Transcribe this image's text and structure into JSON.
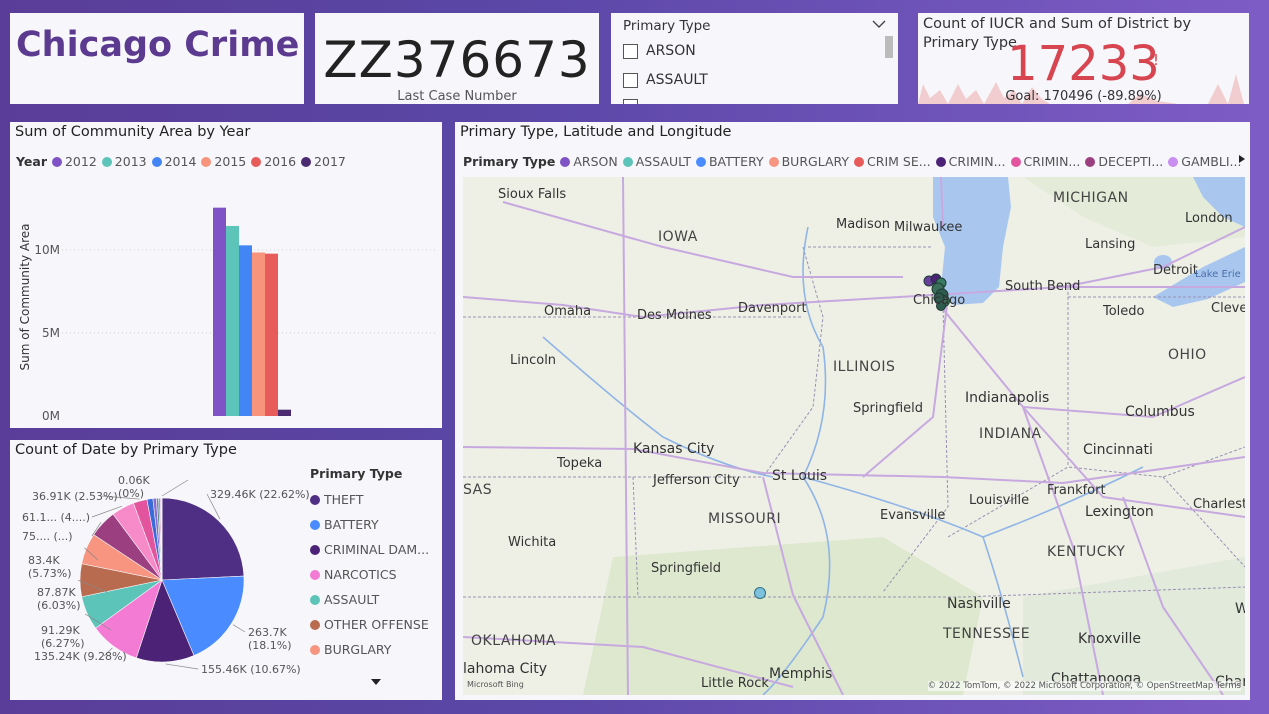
{
  "title": {
    "text": "Chicago Crime"
  },
  "case_card": {
    "value": "ZZ376673",
    "label": "Last Case Number"
  },
  "slicer": {
    "header": "Primary Type",
    "items": [
      "ARSON",
      "ASSAULT"
    ]
  },
  "kpi": {
    "title": "Count of IUCR and Sum of District by Primary Type",
    "value": "17233",
    "indicator": "!",
    "goal": "Goal: 170496 (-89.89%)",
    "colors": {
      "value": "#d64550",
      "trend": "#f2cdd0"
    }
  },
  "bar_chart": {
    "title": "Sum of Community Area by Year",
    "legend_title": "Year",
    "chart_data": {
      "type": "bar",
      "title": "Sum of Community Area by Year",
      "ylabel": "Sum of Community Area",
      "xlabel": "",
      "ylim": [
        0,
        15000000
      ],
      "y_ticks": [
        "0M",
        "5M",
        "10M"
      ],
      "y_tick_values": [
        0,
        5000000,
        10000000
      ],
      "series": [
        {
          "name": "2012",
          "values": [
            12550000
          ],
          "color": "#7f52c5"
        },
        {
          "name": "2013",
          "values": [
            11450000
          ],
          "color": "#5cc4b8"
        },
        {
          "name": "2014",
          "values": [
            10280000
          ],
          "color": "#4285f4"
        },
        {
          "name": "2015",
          "values": [
            9850000
          ],
          "color": "#f7947b"
        },
        {
          "name": "2016",
          "values": [
            9780000
          ],
          "color": "#e75b5b"
        },
        {
          "name": "2017",
          "values": [
            380000
          ],
          "color": "#4a2a70"
        }
      ],
      "grid": true,
      "legend": "top-left"
    }
  },
  "pie_chart": {
    "title": "Count of Date by Primary Type",
    "legend_title": "Primary Type",
    "chart_data": {
      "type": "pie",
      "title": "Count of Date by Primary Type",
      "slices": [
        {
          "name": "THEFT",
          "value": 329460,
          "label": "329.46K (22.62%)",
          "color": "#4f2f83"
        },
        {
          "name": "BATTERY",
          "value": 263700,
          "label": "263.7K (18.1%)",
          "color": "#4a8cff"
        },
        {
          "name": "CRIMINAL DAM...",
          "value": 155460,
          "label": "155.46K (10.67%)",
          "color": "#4b2275"
        },
        {
          "name": "NARCOTICS",
          "value": 135240,
          "label": "135.24K (9.28%)",
          "color": "#f47bd3"
        },
        {
          "name": "ASSAULT",
          "value": 91290,
          "label": "91.29K (6.27%)",
          "color": "#5cc4b8"
        },
        {
          "name": "OTHER OFFENSE",
          "value": 87870,
          "label": "87.87K (6.03%)",
          "color": "#b96b4f"
        },
        {
          "name": "BURGLARY",
          "value": 83400,
          "label": "83.4K (5.73%)",
          "color": "#f79580"
        },
        {
          "name": "",
          "value": 75000,
          "label": "75.... (...)",
          "color": "#9b3f80"
        },
        {
          "name": "",
          "value": 61100,
          "label": "61.1... (4....)",
          "color": "#f78bc9"
        },
        {
          "name": "",
          "value": 36910,
          "label": "36.91K (2.53%)",
          "color": "#e2549d"
        },
        {
          "name": "",
          "value": 16000,
          "label": "",
          "color": "#3a6bd9"
        },
        {
          "name": "",
          "value": 9000,
          "label": "",
          "color": "#8c6bd1"
        },
        {
          "name": "",
          "value": 6000,
          "label": "",
          "color": "#5c8f8f"
        },
        {
          "name": "",
          "value": 4000,
          "label": "",
          "color": "#c45aa8"
        },
        {
          "name": "",
          "value": 3000,
          "label": "",
          "color": "#d7a3e8"
        },
        {
          "name": "",
          "value": 2000,
          "label": "",
          "color": "#7b7bd8"
        },
        {
          "name": "",
          "value": 60,
          "label": "0.06K (0%)",
          "color": "#bbbbbb"
        }
      ],
      "legend": "right"
    },
    "more_icon": "triangle-down-icon"
  },
  "map": {
    "title": "Primary Type, Latitude and Longitude",
    "legend_title": "Primary Type",
    "legend_items": [
      {
        "label": "ARSON",
        "color": "#7f52c5"
      },
      {
        "label": "ASSAULT",
        "color": "#5cc4b8"
      },
      {
        "label": "BATTERY",
        "color": "#4a8cff"
      },
      {
        "label": "BURGLARY",
        "color": "#f79580"
      },
      {
        "label": "CRIM SE...",
        "color": "#e75b5b"
      },
      {
        "label": "CRIMIN...",
        "color": "#4b2275"
      },
      {
        "label": "CRIMIN...",
        "color": "#e2549d"
      },
      {
        "label": "DECEPTI...",
        "color": "#9b3f80"
      },
      {
        "label": "GAMBLI...",
        "color": "#c98ef0"
      }
    ],
    "legend_next_icon": "triangle-right-icon",
    "cities": [
      "Sioux Falls",
      "Madison",
      "Milwaukee",
      "Lansing",
      "London",
      "Detroit",
      "Lake Erie",
      "Omaha",
      "Des Moines",
      "Davenport",
      "Chicago",
      "South Bend",
      "Toledo",
      "Cleve",
      "Lincoln",
      "Springfield",
      "Indianapolis",
      "Columbus",
      "Topeka",
      "Kansas City",
      "St Louis",
      "Cincinnati",
      "Jefferson City",
      "Louisville",
      "Frankfort",
      "Charleston",
      "Lexington",
      "Wichita",
      "Evansville",
      "Springfield",
      "Nashville",
      "Memphis",
      "Knoxville",
      "Little Rock",
      "Chattanooga",
      "lahoma City",
      "W",
      "Char"
    ],
    "states": [
      "MICHIGAN",
      "IOWA",
      "ILLINOIS",
      "OHIO",
      "INDIANA",
      "MISSOURI",
      "KENTUCKY",
      "TENNESSEE",
      "OKLAHOMA",
      "SAS"
    ],
    "attribution": "© 2022 TomTom, © 2022 Microsoft Corporation, © OpenStreetMap  Terms",
    "logo": "Microsoft Bing"
  }
}
